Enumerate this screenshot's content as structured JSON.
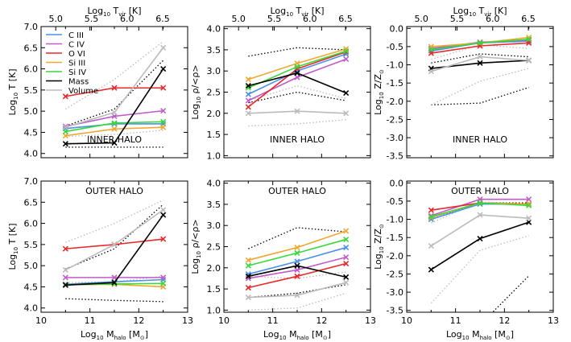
{
  "chart_data": [
    {
      "panel": "top-left",
      "type": "line",
      "x": [
        10.5,
        11.5,
        12.5
      ],
      "xlim": [
        10,
        13
      ],
      "ylim": [
        3.9,
        7.0
      ],
      "yticks": [
        4.0,
        4.5,
        5.0,
        5.5,
        6.0,
        6.5,
        7.0
      ],
      "ylabel": [
        "Log",
        "10",
        " T [K]"
      ],
      "region_label": "INNER HALO",
      "legend": [
        "C III",
        "C IV",
        "O VI",
        "Si III",
        "Si IV",
        "Mass",
        "Volume"
      ],
      "series": [
        {
          "name": "C III",
          "color": "#4a90e8",
          "values": [
            4.59,
            4.7,
            4.7
          ]
        },
        {
          "name": "C IV",
          "color": "#c05cc8",
          "values": [
            4.64,
            4.88,
            5.01
          ]
        },
        {
          "name": "O VI",
          "color": "#e8282a",
          "values": [
            5.35,
            5.55,
            5.55
          ]
        },
        {
          "name": "Si III",
          "color": "#f0a830",
          "values": [
            4.42,
            4.58,
            4.62
          ]
        },
        {
          "name": "Si IV",
          "color": "#38d838",
          "values": [
            4.52,
            4.72,
            4.75
          ]
        },
        {
          "name": "Mass",
          "color": "#000000",
          "values": [
            4.23,
            4.25,
            6.0
          ]
        },
        {
          "name": "Volume",
          "color": "#bbbbbb",
          "values": [
            4.62,
            4.97,
            6.5
          ]
        }
      ],
      "dotted": [
        {
          "color": "#000000",
          "values": [
            4.65,
            5.05,
            6.2
          ]
        },
        {
          "color": "#000000",
          "values": [
            4.15,
            4.15,
            4.15
          ]
        },
        {
          "color": "#bbbbbb",
          "values": [
            5.05,
            5.75,
            6.65
          ]
        },
        {
          "color": "#bbbbbb",
          "values": [
            4.4,
            4.45,
            4.55
          ]
        }
      ]
    },
    {
      "panel": "top-middle",
      "type": "line",
      "x": [
        10.5,
        11.5,
        12.5
      ],
      "xlim": [
        10,
        13
      ],
      "ylim": [
        0.95,
        4.05
      ],
      "yticks": [
        1.0,
        1.5,
        2.0,
        2.5,
        3.0,
        3.5,
        4.0
      ],
      "ylabel": [
        "Log",
        "10",
        " ρ/<ρ>"
      ],
      "region_label": "INNER HALO",
      "series": [
        {
          "name": "C III",
          "color": "#4a90e8",
          "values": [
            2.45,
            3.0,
            3.4
          ]
        },
        {
          "name": "C IV",
          "color": "#c05cc8",
          "values": [
            2.3,
            2.85,
            3.28
          ]
        },
        {
          "name": "O VI",
          "color": "#e8282a",
          "values": [
            2.15,
            3.05,
            3.45
          ]
        },
        {
          "name": "Si III",
          "color": "#f0a830",
          "values": [
            2.8,
            3.18,
            3.52
          ]
        },
        {
          "name": "Si IV",
          "color": "#38d838",
          "values": [
            2.6,
            3.1,
            3.47
          ]
        },
        {
          "name": "Mass",
          "color": "#000000",
          "values": [
            2.65,
            2.95,
            2.48
          ]
        },
        {
          "name": "Volume",
          "color": "#bbbbbb",
          "values": [
            2.0,
            2.05,
            2.0
          ]
        }
      ],
      "dotted": [
        {
          "color": "#000000",
          "values": [
            3.35,
            3.55,
            3.5
          ]
        },
        {
          "color": "#000000",
          "values": [
            2.25,
            2.5,
            2.3
          ]
        },
        {
          "color": "#bbbbbb",
          "values": [
            2.3,
            2.65,
            2.35
          ]
        },
        {
          "color": "#bbbbbb",
          "values": [
            1.7,
            1.75,
            1.85
          ]
        }
      ]
    },
    {
      "panel": "top-right",
      "type": "line",
      "x": [
        10.5,
        11.5,
        12.5
      ],
      "xlim": [
        10,
        13
      ],
      "ylim": [
        -3.55,
        0.05
      ],
      "yticks": [
        -3.5,
        -3.0,
        -2.5,
        -2.0,
        -1.5,
        -1.0,
        -0.5,
        0.0
      ],
      "ylabel": [
        "Log",
        "10",
        " Z/Z",
        "⊙"
      ],
      "region_label": "INNER HALO",
      "series": [
        {
          "name": "C III",
          "color": "#4a90e8",
          "values": [
            -0.62,
            -0.4,
            -0.35
          ]
        },
        {
          "name": "C IV",
          "color": "#c05cc8",
          "values": [
            -0.55,
            -0.38,
            -0.32
          ]
        },
        {
          "name": "O VI",
          "color": "#e8282a",
          "values": [
            -0.68,
            -0.48,
            -0.4
          ]
        },
        {
          "name": "Si III",
          "color": "#f0a830",
          "values": [
            -0.5,
            -0.4,
            -0.25
          ]
        },
        {
          "name": "Si IV",
          "color": "#38d838",
          "values": [
            -0.58,
            -0.4,
            -0.3
          ]
        },
        {
          "name": "Mass",
          "color": "#000000",
          "values": [
            -1.1,
            -0.95,
            -0.88
          ]
        },
        {
          "name": "Volume",
          "color": "#bbbbbb",
          "values": [
            -1.18,
            -0.78,
            -0.88
          ]
        }
      ],
      "dotted": [
        {
          "color": "#000000",
          "values": [
            -2.1,
            -2.05,
            -1.62
          ]
        },
        {
          "color": "#000000",
          "values": [
            -0.95,
            -0.7,
            -0.78
          ]
        },
        {
          "color": "#bbbbbb",
          "values": [
            -2.1,
            -1.45,
            -1.1
          ]
        },
        {
          "color": "#bbbbbb",
          "values": [
            -0.85,
            -0.45,
            -0.55
          ]
        }
      ]
    },
    {
      "panel": "bottom-left",
      "type": "line",
      "x": [
        10.5,
        11.5,
        12.5
      ],
      "xlim": [
        10,
        13
      ],
      "ylim": [
        3.9,
        7.0
      ],
      "yticks": [
        4.0,
        4.5,
        5.0,
        5.5,
        6.0,
        6.5,
        7.0
      ],
      "ylabel": [
        "Log",
        "10",
        " T [K]"
      ],
      "xlabel": [
        "Log",
        "10",
        " M",
        "halo",
        " [M",
        "⊙",
        "]"
      ],
      "xticks": [
        10,
        11,
        12,
        13
      ],
      "region_label": "OUTER HALO",
      "series": [
        {
          "name": "C III",
          "color": "#4a90e8",
          "values": [
            4.56,
            4.62,
            4.67
          ]
        },
        {
          "name": "C IV",
          "color": "#c05cc8",
          "values": [
            4.72,
            4.72,
            4.72
          ]
        },
        {
          "name": "O VI",
          "color": "#e8282a",
          "values": [
            5.4,
            5.5,
            5.63
          ]
        },
        {
          "name": "Si III",
          "color": "#f0a830",
          "values": [
            4.55,
            4.56,
            4.5
          ]
        },
        {
          "name": "Si IV",
          "color": "#38d838",
          "values": [
            4.55,
            4.57,
            4.58
          ]
        },
        {
          "name": "Mass",
          "color": "#000000",
          "values": [
            4.54,
            4.6,
            6.2
          ]
        },
        {
          "name": "Volume",
          "color": "#bbbbbb",
          "values": [
            4.9,
            5.5,
            6.32
          ]
        }
      ],
      "dotted": [
        {
          "color": "#000000",
          "values": [
            4.92,
            5.4,
            6.45
          ]
        },
        {
          "color": "#000000",
          "values": [
            4.22,
            4.18,
            4.15
          ]
        },
        {
          "color": "#bbbbbb",
          "values": [
            5.55,
            6.0,
            6.55
          ]
        },
        {
          "color": "#bbbbbb",
          "values": [
            4.6,
            4.62,
            4.75
          ]
        }
      ]
    },
    {
      "panel": "bottom-middle",
      "type": "line",
      "x": [
        10.5,
        11.5,
        12.5
      ],
      "xlim": [
        10,
        13
      ],
      "ylim": [
        0.95,
        4.05
      ],
      "yticks": [
        1.0,
        1.5,
        2.0,
        2.5,
        3.0,
        3.5,
        4.0
      ],
      "ylabel": [
        "Log",
        "10",
        " ρ/<ρ>"
      ],
      "xlabel": [
        "Log",
        "10",
        " M",
        "halo",
        " [M",
        "⊙",
        "]"
      ],
      "xticks": [
        10,
        11,
        12,
        13
      ],
      "region_label": "OUTER HALO",
      "series": [
        {
          "name": "C III",
          "color": "#4a90e8",
          "values": [
            1.85,
            2.15,
            2.48
          ]
        },
        {
          "name": "C IV",
          "color": "#c05cc8",
          "values": [
            1.75,
            1.95,
            2.25
          ]
        },
        {
          "name": "O VI",
          "color": "#e8282a",
          "values": [
            1.53,
            1.8,
            2.1
          ]
        },
        {
          "name": "Si III",
          "color": "#f0a830",
          "values": [
            2.18,
            2.48,
            2.87
          ]
        },
        {
          "name": "Si IV",
          "color": "#38d838",
          "values": [
            2.05,
            2.35,
            2.67
          ]
        },
        {
          "name": "Mass",
          "color": "#000000",
          "values": [
            1.8,
            2.05,
            1.78
          ]
        },
        {
          "name": "Volume",
          "color": "#bbbbbb",
          "values": [
            1.3,
            1.35,
            1.65
          ]
        }
      ],
      "dotted": [
        {
          "color": "#000000",
          "values": [
            2.45,
            2.95,
            2.85
          ]
        },
        {
          "color": "#000000",
          "values": [
            1.3,
            1.4,
            1.6
          ]
        },
        {
          "color": "#bbbbbb",
          "values": [
            1.8,
            1.75,
            1.9
          ]
        },
        {
          "color": "#bbbbbb",
          "values": [
            1.0,
            1.05,
            1.4
          ]
        }
      ]
    },
    {
      "panel": "bottom-right",
      "type": "line",
      "x": [
        10.5,
        11.5,
        12.5
      ],
      "xlim": [
        10,
        13
      ],
      "ylim": [
        -3.55,
        0.05
      ],
      "yticks": [
        -3.5,
        -3.0,
        -2.5,
        -2.0,
        -1.5,
        -1.0,
        -0.5,
        0.0
      ],
      "ylabel": [
        "Log",
        "10",
        " Z/Z",
        "⊙"
      ],
      "xlabel": [
        "Log",
        "10",
        " M",
        "halo",
        " [M",
        "⊙",
        "]"
      ],
      "xticks": [
        10,
        11,
        12,
        13
      ],
      "region_label": "OUTER HALO",
      "series": [
        {
          "name": "C III",
          "color": "#4a90e8",
          "values": [
            -1.0,
            -0.58,
            -0.58
          ]
        },
        {
          "name": "C IV",
          "color": "#c05cc8",
          "values": [
            -0.9,
            -0.45,
            -0.45
          ]
        },
        {
          "name": "O VI",
          "color": "#e8282a",
          "values": [
            -0.75,
            -0.55,
            -0.58
          ]
        },
        {
          "name": "Si III",
          "color": "#f0a830",
          "values": [
            -0.95,
            -0.55,
            -0.58
          ]
        },
        {
          "name": "Si IV",
          "color": "#38d838",
          "values": [
            -0.93,
            -0.55,
            -0.62
          ]
        },
        {
          "name": "Mass",
          "color": "#000000",
          "values": [
            -2.38,
            -1.53,
            -1.08
          ]
        },
        {
          "name": "Volume",
          "color": "#bbbbbb",
          "values": [
            -1.73,
            -0.88,
            -0.97
          ]
        }
      ],
      "dotted": [
        {
          "color": "#000000",
          "values": [
            -4.4,
            -3.9,
            -2.55
          ]
        },
        {
          "color": "#000000",
          "values": [
            -1.0,
            -0.55,
            -0.55
          ]
        },
        {
          "color": "#bbbbbb",
          "values": [
            -3.3,
            -1.85,
            -1.45
          ]
        },
        {
          "color": "#bbbbbb",
          "values": [
            -1.1,
            -0.52,
            -0.6
          ]
        }
      ]
    }
  ],
  "top_axis": {
    "label": [
      "Log",
      "10",
      " T",
      "vir",
      " [K]"
    ],
    "ticks": [
      "5.0",
      "5.5",
      "6.0",
      "6.5"
    ]
  }
}
